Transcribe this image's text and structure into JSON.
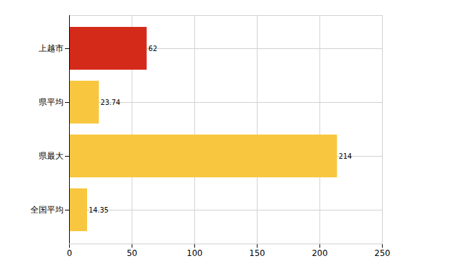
{
  "chart_data": {
    "type": "bar",
    "orientation": "horizontal",
    "categories": [
      "上越市",
      "県平均",
      "県最大",
      "全国平均"
    ],
    "values": [
      62,
      23.74,
      214,
      14.35
    ],
    "colors": [
      "#d42a1a",
      "#f8c73f",
      "#f8c73f",
      "#f8c73f"
    ],
    "xlim": [
      0,
      250
    ],
    "xticks": [
      0,
      50,
      100,
      150,
      200,
      250
    ],
    "grid": true,
    "data_labels": true
  }
}
